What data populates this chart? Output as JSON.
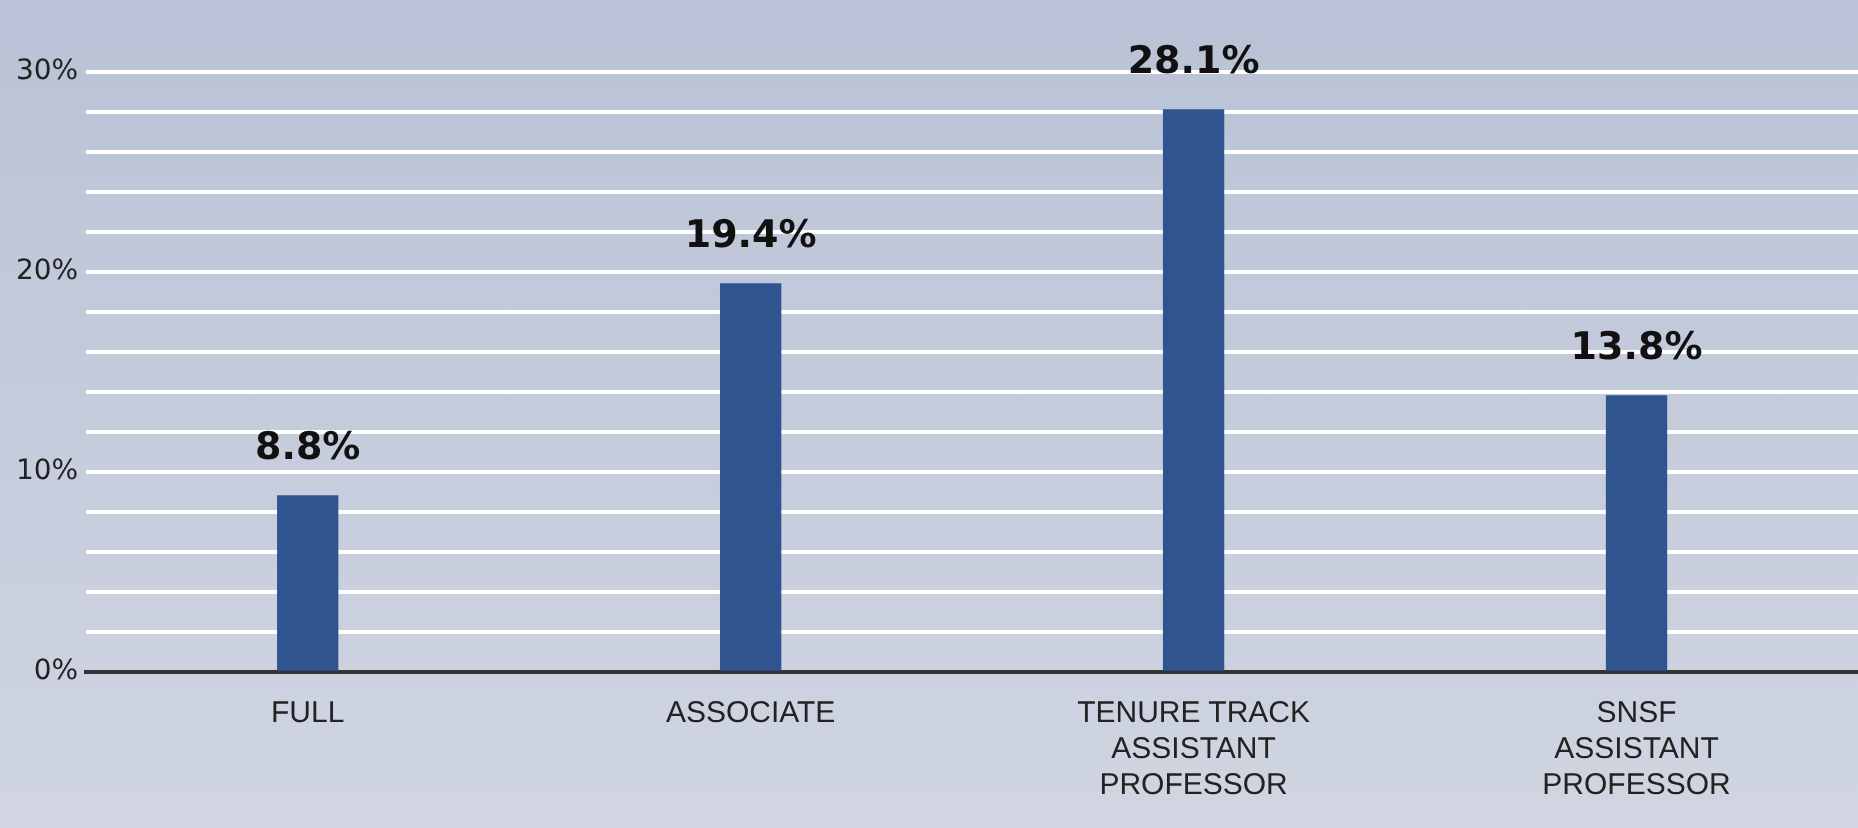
{
  "chart_data": {
    "type": "bar",
    "categories": [
      "FULL",
      "ASSOCIATE",
      "TENURE TRACK ASSISTANT PROFESSOR",
      "SNSF ASSISTANT PROFESSOR"
    ],
    "values": [
      8.8,
      19.4,
      28.1,
      13.8
    ],
    "value_labels": [
      "8.8%",
      "19.4%",
      "28.1%",
      "13.8%"
    ],
    "color": "#30548f",
    "ylim": [
      0,
      30
    ],
    "yticks": [
      {
        "value": 0,
        "label": "0%"
      },
      {
        "value": 2,
        "label": null
      },
      {
        "value": 4,
        "label": null
      },
      {
        "value": 6,
        "label": null
      },
      {
        "value": 8,
        "label": null
      },
      {
        "value": 10,
        "label": "10%"
      },
      {
        "value": 12,
        "label": null
      },
      {
        "value": 14,
        "label": null
      },
      {
        "value": 16,
        "label": null
      },
      {
        "value": 18,
        "label": null
      },
      {
        "value": 20,
        "label": "20%"
      },
      {
        "value": 22,
        "label": null
      },
      {
        "value": 24,
        "label": null
      },
      {
        "value": 26,
        "label": null
      },
      {
        "value": 28,
        "label": null
      },
      {
        "value": 30,
        "label": "30%"
      }
    ],
    "grid": "y",
    "legend": false
  }
}
